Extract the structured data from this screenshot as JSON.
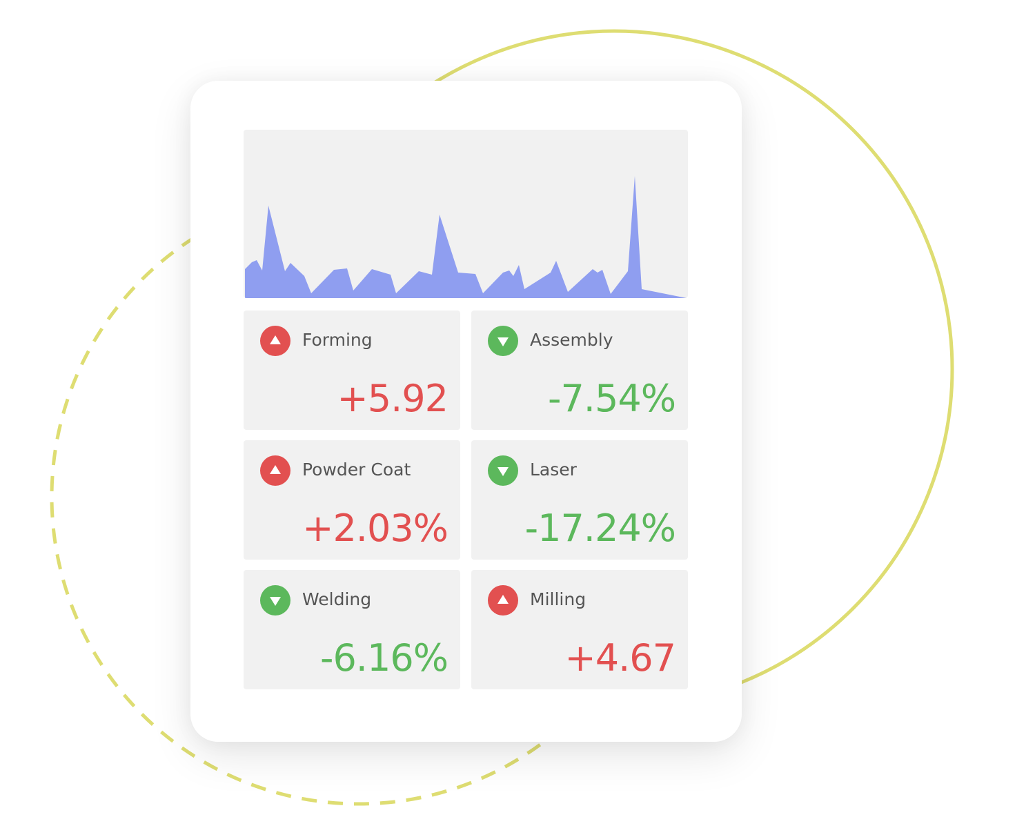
{
  "chart_data": {
    "type": "area",
    "color": "#8f9ef0",
    "xlim": [
      0,
      644
    ],
    "ylim": [
      0,
      244
    ],
    "x": [
      2,
      12,
      19,
      27,
      36,
      60,
      68,
      88,
      98,
      131,
      150,
      159,
      186,
      213,
      221,
      254,
      273,
      284,
      311,
      336,
      347,
      376,
      385,
      391,
      399,
      407,
      445,
      453,
      470,
      506,
      513,
      520,
      532,
      557,
      567,
      577,
      642
    ],
    "values": [
      42,
      52,
      55,
      40,
      134,
      39,
      51,
      32,
      7,
      41,
      43,
      11,
      42,
      34,
      7,
      39,
      34,
      121,
      37,
      35,
      7,
      37,
      40,
      32,
      48,
      13,
      37,
      54,
      9,
      42,
      37,
      41,
      6,
      39,
      177,
      13,
      0
    ]
  },
  "tiles": [
    {
      "label": "Forming",
      "value": "+5.92",
      "trend": "up"
    },
    {
      "label": "Assembly",
      "value": "-7.54%",
      "trend": "down"
    },
    {
      "label": "Powder Coat",
      "value": "+2.03%",
      "trend": "up"
    },
    {
      "label": "Laser",
      "value": "-17.24%",
      "trend": "down"
    },
    {
      "label": "Welding",
      "value": "-6.16%",
      "trend": "down"
    },
    {
      "label": "Milling",
      "value": "+4.67",
      "trend": "up"
    }
  ]
}
